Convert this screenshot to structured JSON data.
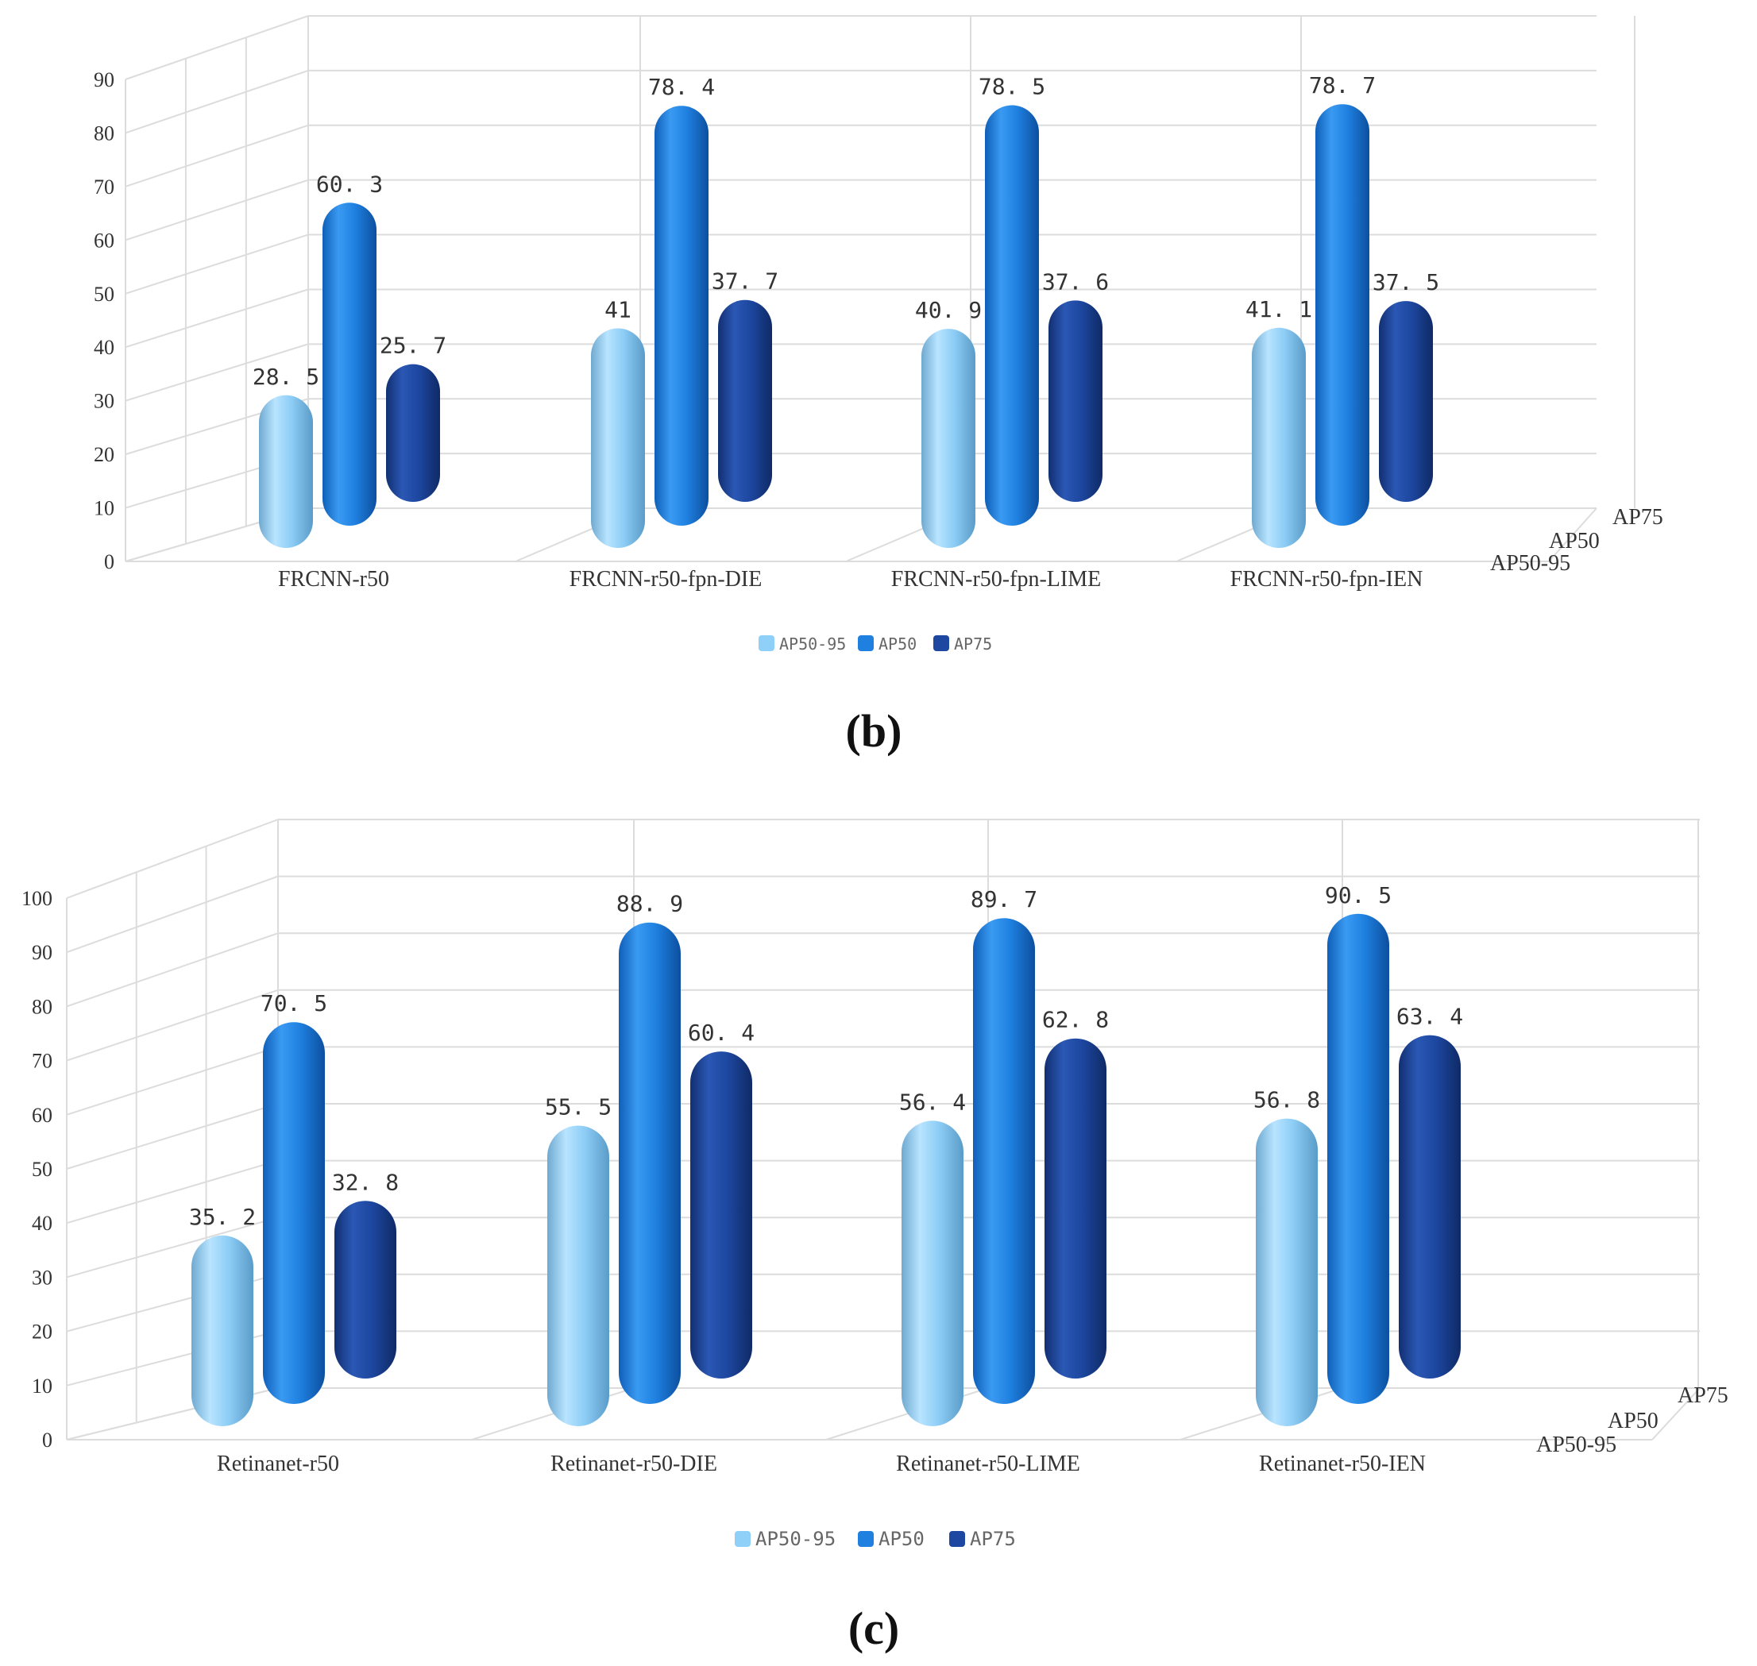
{
  "chart_data": [
    {
      "type": "bar",
      "style": "3d-cylinder",
      "caption": "(b)",
      "categories": [
        "FRCNN-r50",
        "FRCNN-r50-fpn-DIE",
        "FRCNN-r50-fpn-LIME",
        "FRCNN-r50-fpn-IEN"
      ],
      "series": [
        {
          "name": "AP50-95",
          "values": [
            28.5,
            41,
            40.9,
            41.1
          ]
        },
        {
          "name": "AP50",
          "values": [
            60.3,
            78.4,
            78.5,
            78.7
          ]
        },
        {
          "name": "AP75",
          "values": [
            25.7,
            37.7,
            37.6,
            37.5
          ]
        }
      ],
      "data_labels": [
        [
          "28. 5",
          "41",
          "40. 9",
          "41. 1"
        ],
        [
          "60. 3",
          "78. 4",
          "78. 5",
          "78. 7"
        ],
        [
          "25. 7",
          "37. 7",
          "37. 6",
          "37. 5"
        ]
      ],
      "yticks": [
        "0",
        "10",
        "20",
        "30",
        "40",
        "50",
        "60",
        "70",
        "80",
        "90"
      ],
      "ylim": [
        0,
        90
      ],
      "depth_labels": [
        "AP50-95",
        "AP50",
        "AP75"
      ],
      "legend": [
        "AP50-95",
        "AP50",
        "AP75"
      ],
      "legend_position": "bottom-center",
      "grid": true,
      "colors": [
        "#8ed0f8",
        "#1f80e0",
        "#1d47a0"
      ]
    },
    {
      "type": "bar",
      "style": "3d-cylinder",
      "caption": "(c)",
      "categories": [
        "Retinanet-r50",
        "Retinanet-r50-DIE",
        "Retinanet-r50-LIME",
        "Retinanet-r50-IEN"
      ],
      "series": [
        {
          "name": "AP50-95",
          "values": [
            35.2,
            55.5,
            56.4,
            56.8
          ]
        },
        {
          "name": "AP50",
          "values": [
            70.5,
            88.9,
            89.7,
            90.5
          ]
        },
        {
          "name": "AP75",
          "values": [
            32.8,
            60.4,
            62.8,
            63.4
          ]
        }
      ],
      "data_labels": [
        [
          "35. 2",
          "55. 5",
          "56. 4",
          "56. 8"
        ],
        [
          "70. 5",
          "88. 9",
          "89. 7",
          "90. 5"
        ],
        [
          "32. 8",
          "60. 4",
          "62. 8",
          "63. 4"
        ]
      ],
      "yticks": [
        "0",
        "10",
        "20",
        "30",
        "40",
        "50",
        "60",
        "70",
        "80",
        "90",
        "100"
      ],
      "ylim": [
        0,
        100
      ],
      "depth_labels": [
        "AP50-95",
        "AP50",
        "AP75"
      ],
      "legend": [
        "AP50-95",
        "AP50",
        "AP75"
      ],
      "legend_position": "bottom-center",
      "grid": true,
      "colors": [
        "#8ed0f8",
        "#1f80e0",
        "#1d47a0"
      ]
    }
  ]
}
